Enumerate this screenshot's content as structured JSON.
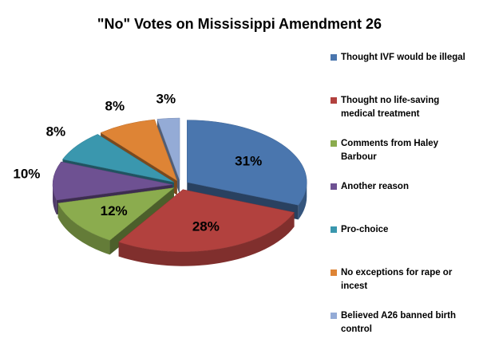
{
  "chart_data": {
    "type": "pie",
    "title": "\"No\" Votes on Mississippi Amendment 26",
    "categories": [
      "Thought IVF would be illegal",
      "Thought no life-saving medical treatment",
      "Comments from Haley Barbour",
      "Another reason",
      "Pro-choice",
      "No exceptions for rape or incest",
      "Believed A26 banned birth control"
    ],
    "values": [
      31,
      28,
      12,
      10,
      8,
      8,
      3
    ],
    "labels": [
      "31%",
      "28%",
      "12%",
      "10%",
      "8%",
      "8%",
      "3%"
    ],
    "colors": [
      "#4a76ae",
      "#b2413e",
      "#8bac4e",
      "#6e5192",
      "#3a97ae",
      "#de8435",
      "#94abd6"
    ],
    "exploded": true,
    "legend_position": "right"
  }
}
